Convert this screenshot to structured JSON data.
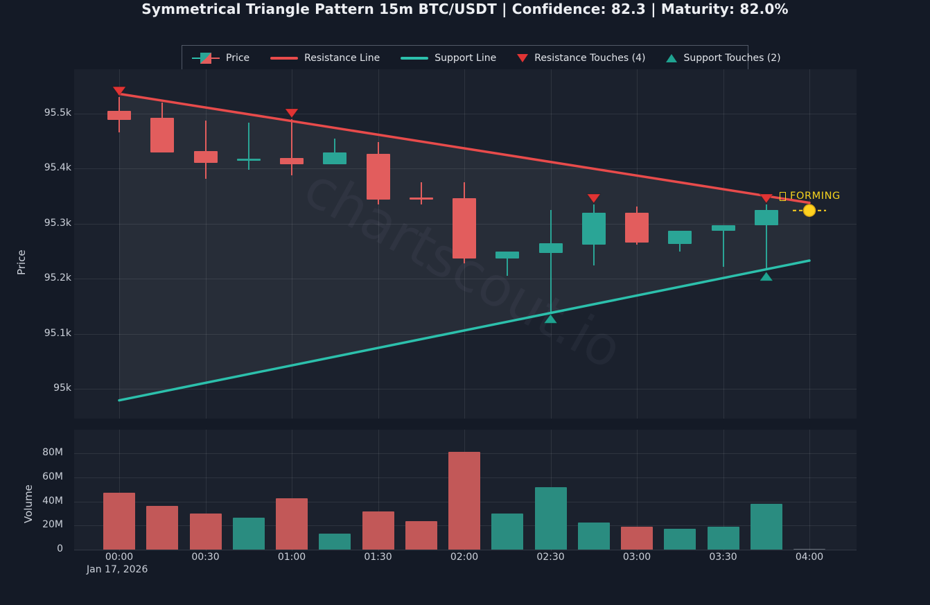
{
  "title": "Symmetrical Triangle Pattern 15m BTC/USDT | Confidence: 82.3 | Maturity: 82.0%",
  "watermark": "chartscout.io",
  "forming": {
    "label": "FORMING"
  },
  "colors": {
    "background": "#141a26",
    "panel": "#1b212d",
    "bull": "#2aa596",
    "bear": "#e25d5d",
    "bull_volume": "#2a8c80",
    "bear_volume": "#c25858",
    "resistance_line": "#e84b4b",
    "support_line": "#2cc0ac",
    "resistance_marker": "#e13434",
    "support_marker": "#1fa391",
    "forming_yellow": "#ffd21f",
    "text": "#ccd1da",
    "grid": "rgba(255,255,255,0.085)"
  },
  "legend": {
    "items": [
      {
        "icon": "candle",
        "label": "Price"
      },
      {
        "icon": "line",
        "color_key": "resistance_line",
        "label": "Resistance Line"
      },
      {
        "icon": "line",
        "color_key": "support_line",
        "label": "Support Line"
      },
      {
        "icon": "triangle-down",
        "color_key": "resistance_marker",
        "label": "Resistance Touches (4)"
      },
      {
        "icon": "triangle-up",
        "color_key": "support_marker",
        "label": "Support Touches (2)"
      }
    ]
  },
  "axes": {
    "price": {
      "title": "Price",
      "ticks": [
        {
          "value": 95000,
          "label": "95k"
        },
        {
          "value": 95100,
          "label": "95.1k"
        },
        {
          "value": 95200,
          "label": "95.2k"
        },
        {
          "value": 95300,
          "label": "95.3k"
        },
        {
          "value": 95400,
          "label": "95.4k"
        },
        {
          "value": 95500,
          "label": "95.5k"
        }
      ]
    },
    "volume": {
      "title": "Volume",
      "ticks": [
        {
          "value": 0,
          "label": "0"
        },
        {
          "value": 20,
          "label": "20M"
        },
        {
          "value": 40,
          "label": "40M"
        },
        {
          "value": 60,
          "label": "60M"
        },
        {
          "value": 80,
          "label": "80M"
        }
      ]
    },
    "time": {
      "ticks": [
        {
          "time": "00:00",
          "label": "00:00"
        },
        {
          "time": "00:30",
          "label": "00:30"
        },
        {
          "time": "01:00",
          "label": "01:00"
        },
        {
          "time": "01:30",
          "label": "01:30"
        },
        {
          "time": "02:00",
          "label": "02:00"
        },
        {
          "time": "02:30",
          "label": "02:30"
        },
        {
          "time": "03:00",
          "label": "03:00"
        },
        {
          "time": "03:30",
          "label": "03:30"
        },
        {
          "time": "04:00",
          "label": "04:00"
        }
      ],
      "date_label": "Jan 17, 2026"
    }
  },
  "chart_data": {
    "type": "candlestick",
    "pattern": "Symmetrical Triangle",
    "pair": "BTC/USDT",
    "interval": "15m",
    "confidence": 82.3,
    "maturity_pct": 82.0,
    "date": "Jan 17, 2026",
    "price_ylabel": "Price",
    "volume_ylabel": "Volume",
    "price_ylim": [
      94946,
      95581
    ],
    "volume_ylim": [
      0,
      100
    ],
    "grid": true,
    "candles": [
      {
        "time": "00:00",
        "open": 95505,
        "high": 95530,
        "low": 95466,
        "close": 95489,
        "volume_m": 47
      },
      {
        "time": "00:15",
        "open": 95492,
        "high": 95520,
        "low": 95429,
        "close": 95429,
        "volume_m": 36.5
      },
      {
        "time": "00:30",
        "open": 95432,
        "high": 95488,
        "low": 95381,
        "close": 95411,
        "volume_m": 30
      },
      {
        "time": "00:45",
        "open": 95415,
        "high": 95484,
        "low": 95398,
        "close": 95418,
        "volume_m": 26.5
      },
      {
        "time": "01:00",
        "open": 95419,
        "high": 95490,
        "low": 95388,
        "close": 95408,
        "volume_m": 42.5
      },
      {
        "time": "01:15",
        "open": 95408,
        "high": 95455,
        "low": 95408,
        "close": 95429,
        "volume_m": 13
      },
      {
        "time": "01:30",
        "open": 95427,
        "high": 95448,
        "low": 95335,
        "close": 95344,
        "volume_m": 31.5
      },
      {
        "time": "01:45",
        "open": 95347,
        "high": 95375,
        "low": 95335,
        "close": 95345,
        "volume_m": 23.5
      },
      {
        "time": "02:00",
        "open": 95346,
        "high": 95375,
        "low": 95228,
        "close": 95237,
        "volume_m": 81
      },
      {
        "time": "02:15",
        "open": 95237,
        "high": 95250,
        "low": 95205,
        "close": 95250,
        "volume_m": 30
      },
      {
        "time": "02:30",
        "open": 95247,
        "high": 95325,
        "low": 95138,
        "close": 95264,
        "volume_m": 52
      },
      {
        "time": "02:45",
        "open": 95262,
        "high": 95335,
        "low": 95224,
        "close": 95320,
        "volume_m": 22.5
      },
      {
        "time": "03:00",
        "open": 95320,
        "high": 95331,
        "low": 95262,
        "close": 95266,
        "volume_m": 19
      },
      {
        "time": "03:15",
        "open": 95263,
        "high": 95287,
        "low": 95249,
        "close": 95287,
        "volume_m": 17.5
      },
      {
        "time": "03:30",
        "open": 95287,
        "high": 95297,
        "low": 95222,
        "close": 95297,
        "volume_m": 19
      },
      {
        "time": "03:45",
        "open": 95297,
        "high": 95335,
        "low": 95215,
        "close": 95325,
        "volume_m": 38
      }
    ],
    "resistance_line": {
      "x": [
        "00:00",
        "04:00"
      ],
      "price": [
        95536,
        95338
      ]
    },
    "support_line": {
      "x": [
        "00:00",
        "04:00"
      ],
      "price": [
        94979,
        95233
      ]
    },
    "resistance_touches": [
      {
        "x": "00:00",
        "price": 95530
      },
      {
        "x": "01:00",
        "price": 95490
      },
      {
        "x": "02:45",
        "price": 95335
      },
      {
        "x": "03:45",
        "price": 95335
      }
    ],
    "support_touches": [
      {
        "x": "02:30",
        "price": 95138
      },
      {
        "x": "03:45",
        "price": 95215
      }
    ],
    "forming_point": {
      "x": "04:00",
      "price": 95324,
      "volume_m": 0.8
    }
  }
}
